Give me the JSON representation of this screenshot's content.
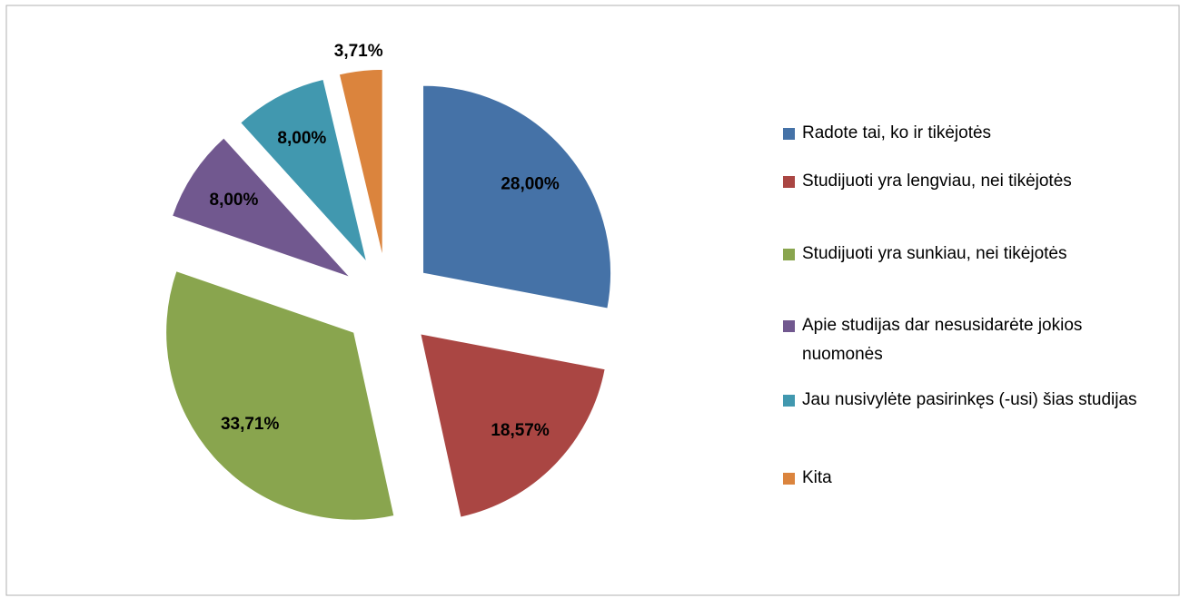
{
  "chart_data": {
    "type": "pie",
    "categories": [
      "Radote tai, ko ir tikėjotės",
      "Studijuoti yra lengviau, nei tikėjotės",
      "Studijuoti yra sunkiau, nei tikėjotės",
      "Apie studijas dar nesusidarėte jokios nuomonės",
      "Jau nusivylėte pasirinkęs (-usi) šias studijas",
      "Kita"
    ],
    "values": [
      28,
      18.57,
      33.71,
      8,
      8,
      3.71
    ],
    "value_labels": [
      "28,00%",
      "18,57%",
      "33,71%",
      "8,00%",
      "8,00%",
      "3,71%"
    ],
    "colors": [
      "#4572a7",
      "#aa4643",
      "#89a54e",
      "#71588f",
      "#4198af",
      "#db843d"
    ],
    "legend": "right"
  }
}
